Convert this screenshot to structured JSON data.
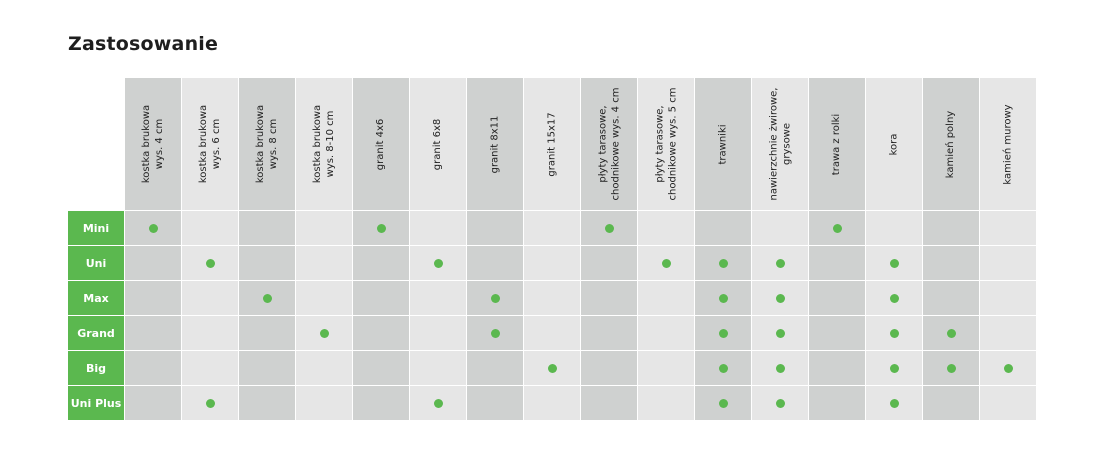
{
  "title": "Zastosowanie",
  "columns": [
    "kostka brukowa\nwys. 4 cm",
    "kostka brukowa\nwys. 6 cm",
    "kostka brukowa\nwys. 8 cm",
    "kostka brukowa\nwys. 8-10 cm",
    "granit 4x6",
    "granit 6x8",
    "granit 8x11",
    "granit 15x17",
    "płyty tarasowe,\nchodnikowe wys. 4 cm",
    "płyty tarasowe,\nchodnikowe wys. 5 cm",
    "trawniki",
    "nawierzchnie żwirowe,\ngrysowe",
    "trawa z rolki",
    "kora",
    "kamień polny",
    "kamień murowy"
  ],
  "rows": [
    {
      "label": "Mini",
      "marks": [
        1,
        0,
        0,
        0,
        1,
        0,
        0,
        0,
        1,
        0,
        0,
        0,
        1,
        0,
        0,
        0
      ]
    },
    {
      "label": "Uni",
      "marks": [
        0,
        1,
        0,
        0,
        0,
        1,
        0,
        0,
        0,
        1,
        1,
        1,
        0,
        1,
        0,
        0
      ]
    },
    {
      "label": "Max",
      "marks": [
        0,
        0,
        1,
        0,
        0,
        0,
        1,
        0,
        0,
        0,
        1,
        1,
        0,
        1,
        0,
        0
      ]
    },
    {
      "label": "Grand",
      "marks": [
        0,
        0,
        0,
        1,
        0,
        0,
        1,
        0,
        0,
        0,
        1,
        1,
        0,
        1,
        1,
        0
      ]
    },
    {
      "label": "Big",
      "marks": [
        0,
        0,
        0,
        0,
        0,
        0,
        0,
        1,
        0,
        0,
        1,
        1,
        0,
        1,
        1,
        1
      ]
    },
    {
      "label": "Uni Plus",
      "marks": [
        0,
        1,
        0,
        0,
        0,
        1,
        0,
        0,
        0,
        0,
        1,
        1,
        0,
        1,
        0,
        0
      ]
    }
  ],
  "colors": {
    "accent": "#5bb84f",
    "dark_column": "#cfd1d0",
    "light_column": "#e6e6e6"
  },
  "dark_columns": [
    0,
    2,
    4,
    6,
    8,
    10,
    12,
    14
  ]
}
